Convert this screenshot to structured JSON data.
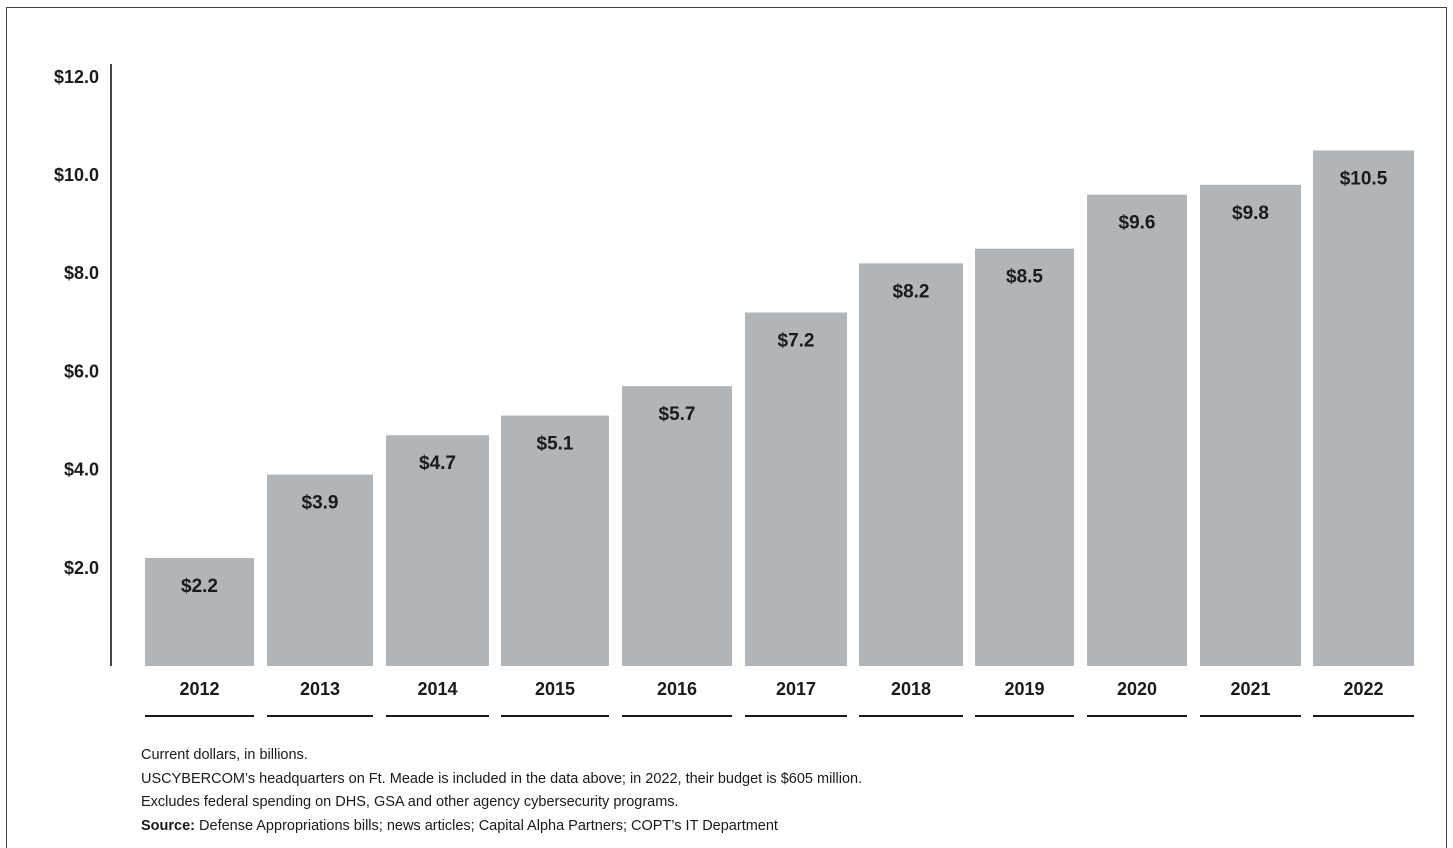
{
  "chart_data": {
    "type": "bar",
    "categories": [
      "2012",
      "2013",
      "2014",
      "2015",
      "2016",
      "2017",
      "2018",
      "2019",
      "2020",
      "2021",
      "2022"
    ],
    "values": [
      2.2,
      3.9,
      4.7,
      5.1,
      5.7,
      7.2,
      8.2,
      8.5,
      9.6,
      9.8,
      10.5
    ],
    "data_labels": [
      "$2.2",
      "$3.9",
      "$4.7",
      "$5.1",
      "$5.7",
      "$7.2",
      "$8.2",
      "$8.5",
      "$9.6",
      "$9.8",
      "$10.5"
    ],
    "y_ticks": [
      2,
      4,
      6,
      8,
      10,
      12
    ],
    "y_tick_labels": [
      "$2.0",
      "$4.0",
      "$6.0",
      "$8.0",
      "$10.0",
      "$12.0"
    ],
    "ylim": [
      0,
      12
    ],
    "title": "",
    "xlabel": "",
    "ylabel": "",
    "grid": false,
    "colors": {
      "bar": "#b1b5b8",
      "text": "#1a1a1a",
      "axis": "#1a1a1a"
    }
  },
  "notes": {
    "line1": "Current dollars, in billions.",
    "line2": "USCYBERCOM’s headquarters on Ft. Meade is included in the data above; in 2022, their budget is $605 million.",
    "line3": "Excludes federal spending on DHS, GSA and other agency cybersecurity programs.",
    "source_label": "Source:",
    "source_text": " Defense Appropriations bills; news articles; Capital Alpha Partners; COPT’s IT Department"
  }
}
